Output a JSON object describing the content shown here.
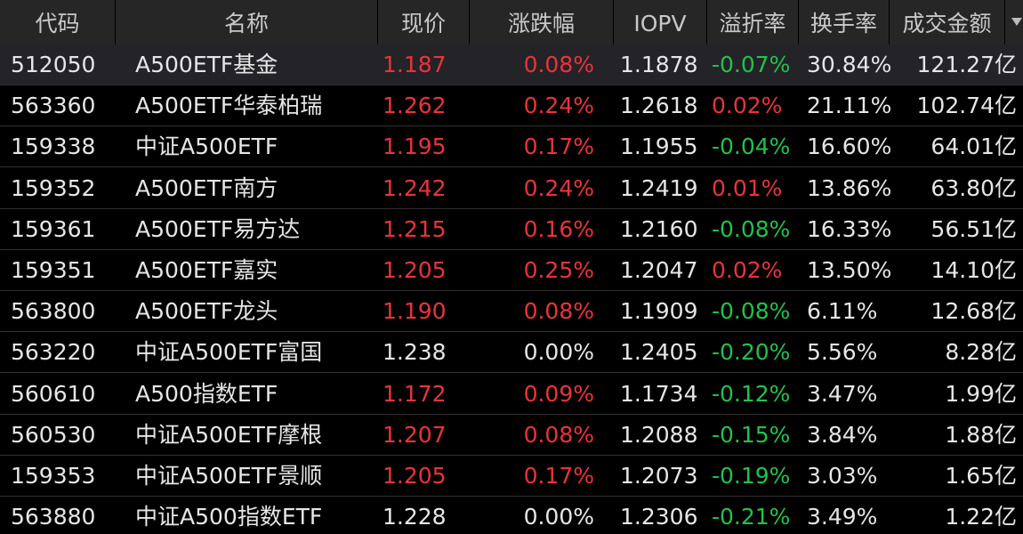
{
  "table": {
    "columns": [
      "代码",
      "名称",
      "现价",
      "涨跌幅",
      "IOPV",
      "溢折率",
      "换手率",
      "成交金额"
    ],
    "rows": [
      [
        "512050",
        "A500ETF基金",
        "1.187",
        "0.08%",
        "1.1878",
        "-0.07%",
        "30.84%",
        "121.27亿"
      ],
      [
        "563360",
        "A500ETF华泰柏瑞",
        "1.262",
        "0.24%",
        "1.2618",
        "0.02%",
        "21.11%",
        "102.74亿"
      ],
      [
        "159338",
        "中证A500ETF",
        "1.195",
        "0.17%",
        "1.1955",
        "-0.04%",
        "16.60%",
        "64.01亿"
      ],
      [
        "159352",
        "A500ETF南方",
        "1.242",
        "0.24%",
        "1.2419",
        "0.01%",
        "13.86%",
        "63.80亿"
      ],
      [
        "159361",
        "A500ETF易方达",
        "1.215",
        "0.16%",
        "1.2160",
        "-0.08%",
        "16.33%",
        "56.51亿"
      ],
      [
        "159351",
        "A500ETF嘉实",
        "1.205",
        "0.25%",
        "1.2047",
        "0.02%",
        "13.50%",
        "14.10亿"
      ],
      [
        "563800",
        "A500ETF龙头",
        "1.190",
        "0.08%",
        "1.1909",
        "-0.08%",
        "6.11%",
        "12.68亿"
      ],
      [
        "563220",
        "中证A500ETF富国",
        "1.238",
        "0.00%",
        "1.2405",
        "-0.20%",
        "5.56%",
        "8.28亿"
      ],
      [
        "560610",
        "A500指数ETF",
        "1.172",
        "0.09%",
        "1.1734",
        "-0.12%",
        "3.47%",
        "1.99亿"
      ],
      [
        "560530",
        "中证A500ETF摩根",
        "1.207",
        "0.08%",
        "1.2088",
        "-0.15%",
        "3.84%",
        "1.88亿"
      ],
      [
        "159353",
        "中证A500ETF景顺",
        "1.205",
        "0.17%",
        "1.2073",
        "-0.19%",
        "3.03%",
        "1.65亿"
      ],
      [
        "563880",
        "中证A500指数ETF",
        "1.228",
        "0.00%",
        "1.2306",
        "-0.21%",
        "3.49%",
        "1.22亿"
      ]
    ]
  }
}
